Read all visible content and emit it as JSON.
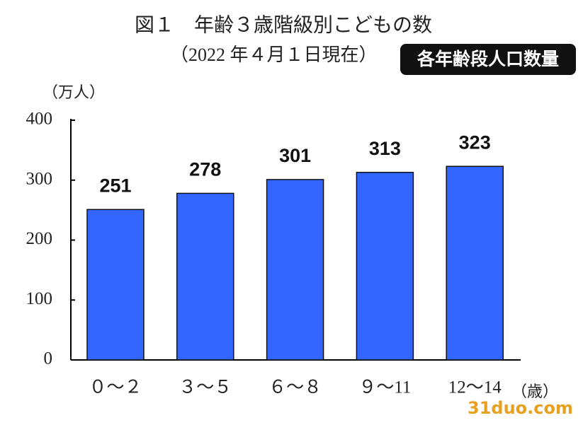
{
  "chart_data": {
    "type": "bar",
    "title": "図１　年齢３歳階級別こどもの数",
    "subtitle": "（2022 年４月１日現在）",
    "badge": "各年齢段人口数量",
    "y_unit": "（万人）",
    "x_unit": "（歳）",
    "watermark": "31duo.com",
    "categories": [
      "０～２",
      "３～５",
      "６～８",
      "９～11",
      "12～14"
    ],
    "values": [
      251,
      278,
      301,
      313,
      323
    ],
    "color": "#3366ff",
    "ylim": [
      0,
      400
    ],
    "yticks": [
      0,
      100,
      200,
      300,
      400
    ],
    "grid": false
  }
}
